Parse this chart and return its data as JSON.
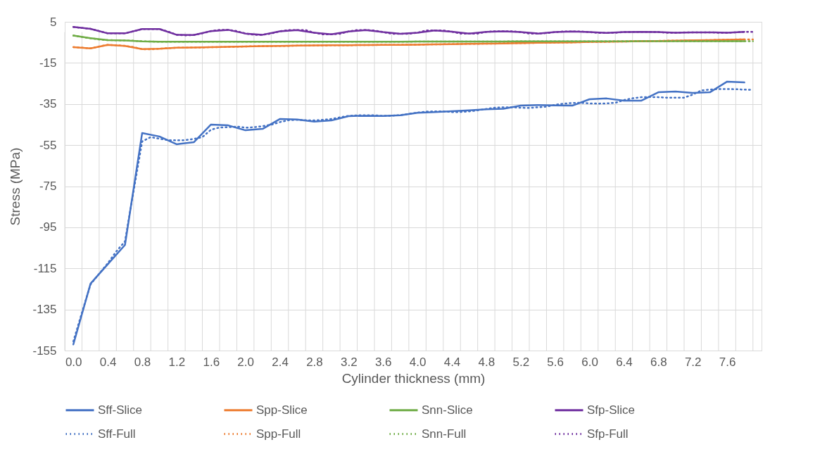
{
  "chart_data": {
    "type": "line",
    "xlabel": "Cylinder thickness (mm)",
    "ylabel": "Stress (MPa)",
    "xlim": [
      -0.1,
      8.0
    ],
    "ylim": [
      -155,
      5
    ],
    "xticks": [
      {
        "value": -0.1,
        "label": null
      },
      {
        "value": 0,
        "label": "0.0"
      },
      {
        "value": 0.1,
        "label": null
      },
      {
        "value": 0.3,
        "label": null
      },
      {
        "value": 0.4,
        "label": "0.4"
      },
      {
        "value": 0.5,
        "label": null
      },
      {
        "value": 0.7,
        "label": null
      },
      {
        "value": 0.8,
        "label": "0.8"
      },
      {
        "value": 0.9,
        "label": null
      },
      {
        "value": 1.1,
        "label": null
      },
      {
        "value": 1.2,
        "label": "1.2"
      },
      {
        "value": 1.3,
        "label": null
      },
      {
        "value": 1.5,
        "label": null
      },
      {
        "value": 1.6,
        "label": "1.6"
      },
      {
        "value": 1.7,
        "label": null
      },
      {
        "value": 1.9,
        "label": null
      },
      {
        "value": 2.0,
        "label": "2.0"
      },
      {
        "value": 2.1,
        "label": null
      },
      {
        "value": 2.3,
        "label": null
      },
      {
        "value": 2.4,
        "label": "2.4"
      },
      {
        "value": 2.5,
        "label": null
      },
      {
        "value": 2.7,
        "label": null
      },
      {
        "value": 2.8,
        "label": "2.8"
      },
      {
        "value": 2.9,
        "label": null
      },
      {
        "value": 3.1,
        "label": null
      },
      {
        "value": 3.2,
        "label": "3.2"
      },
      {
        "value": 3.3,
        "label": null
      },
      {
        "value": 3.5,
        "label": null
      },
      {
        "value": 3.6,
        "label": "3.6"
      },
      {
        "value": 3.7,
        "label": null
      },
      {
        "value": 3.9,
        "label": null
      },
      {
        "value": 4.0,
        "label": "4.0"
      },
      {
        "value": 4.1,
        "label": null
      },
      {
        "value": 4.3,
        "label": null
      },
      {
        "value": 4.4,
        "label": "4.4"
      },
      {
        "value": 4.5,
        "label": null
      },
      {
        "value": 4.7,
        "label": null
      },
      {
        "value": 4.8,
        "label": "4.8"
      },
      {
        "value": 4.9,
        "label": null
      },
      {
        "value": 5.1,
        "label": null
      },
      {
        "value": 5.2,
        "label": "5.2"
      },
      {
        "value": 5.3,
        "label": null
      },
      {
        "value": 5.5,
        "label": null
      },
      {
        "value": 5.6,
        "label": "5.6"
      },
      {
        "value": 5.7,
        "label": null
      },
      {
        "value": 5.9,
        "label": null
      },
      {
        "value": 6.0,
        "label": "6.0"
      },
      {
        "value": 6.1,
        "label": null
      },
      {
        "value": 6.3,
        "label": null
      },
      {
        "value": 6.4,
        "label": "6.4"
      },
      {
        "value": 6.5,
        "label": null
      },
      {
        "value": 6.7,
        "label": null
      },
      {
        "value": 6.8,
        "label": "6.8"
      },
      {
        "value": 6.9,
        "label": null
      },
      {
        "value": 7.1,
        "label": null
      },
      {
        "value": 7.2,
        "label": "7.2"
      },
      {
        "value": 7.3,
        "label": null
      },
      {
        "value": 7.5,
        "label": null
      },
      {
        "value": 7.6,
        "label": "7.6"
      },
      {
        "value": 7.7,
        "label": null
      },
      {
        "value": 7.9,
        "label": null
      }
    ],
    "yticks": [
      -155,
      -135,
      -115,
      -95,
      -75,
      -55,
      -35,
      -15,
      5
    ],
    "grid": true,
    "legend": "bottom",
    "marker": "none",
    "series": [
      {
        "name": "Sff-Slice",
        "color": "#4472c4",
        "line_style": "solid",
        "x": [
          0,
          0.2,
          0.4,
          0.6,
          0.8,
          1.0,
          1.2,
          1.4,
          1.6,
          1.8,
          2.0,
          2.2,
          2.4,
          2.6,
          2.8,
          3.0,
          3.2,
          3.4,
          3.6,
          3.8,
          4.0,
          4.2,
          4.4,
          4.6,
          4.8,
          5.0,
          5.2,
          5.4,
          5.6,
          5.8,
          6.0,
          6.2,
          6.4,
          6.6,
          6.8,
          7.0,
          7.2,
          7.4,
          7.6,
          7.8
        ],
        "values": [
          -152,
          -122.4,
          -113,
          -103.6,
          -49.1,
          -50.8,
          -54.6,
          -53.6,
          -45.0,
          -45.4,
          -47.8,
          -47.1,
          -42.3,
          -42.5,
          -43.6,
          -43.0,
          -40.9,
          -40.7,
          -40.8,
          -40.5,
          -39.3,
          -38.9,
          -38.5,
          -38.1,
          -37.6,
          -37.3,
          -35.8,
          -35.5,
          -35.7,
          -35.8,
          -32.7,
          -32.3,
          -33.4,
          -33.4,
          -29.3,
          -28.9,
          -29.6,
          -29.3,
          -24.1,
          -24.5
        ]
      },
      {
        "name": "Spp-Slice",
        "color": "#ed7d31",
        "line_style": "solid",
        "x": [
          0,
          0.2,
          0.4,
          0.6,
          0.8,
          1.0,
          1.2,
          1.4,
          1.6,
          1.8,
          2.0,
          2.2,
          2.4,
          2.6,
          2.8,
          3.0,
          3.2,
          3.4,
          3.6,
          3.8,
          4.0,
          4.2,
          4.4,
          4.6,
          4.8,
          5.0,
          5.2,
          5.4,
          5.6,
          5.8,
          6.0,
          6.2,
          6.4,
          6.6,
          6.8,
          7.0,
          7.2,
          7.4,
          7.6,
          7.8
        ],
        "values": [
          -7.3,
          -7.9,
          -6.2,
          -6.7,
          -8.3,
          -8.1,
          -7.6,
          -7.5,
          -7.3,
          -7.2,
          -7.0,
          -6.8,
          -6.7,
          -6.6,
          -6.5,
          -6.4,
          -6.4,
          -6.3,
          -6.2,
          -6.2,
          -6.1,
          -6.0,
          -5.9,
          -5.7,
          -5.6,
          -5.5,
          -5.4,
          -5.2,
          -5.1,
          -5.0,
          -4.8,
          -4.7,
          -4.6,
          -4.4,
          -4.3,
          -4.2,
          -4.0,
          -3.9,
          -3.7,
          -3.6
        ]
      },
      {
        "name": "Snn-Slice",
        "color": "#70ad47",
        "line_style": "solid",
        "x": [
          0,
          0.2,
          0.4,
          0.6,
          0.8,
          1.0,
          1.2,
          1.4,
          1.6,
          1.8,
          2.0,
          2.2,
          2.4,
          2.6,
          2.8,
          3.0,
          3.2,
          3.4,
          3.6,
          3.8,
          4.0,
          4.2,
          4.4,
          4.6,
          4.8,
          5.0,
          5.2,
          5.4,
          5.6,
          5.8,
          6.0,
          6.2,
          6.4,
          6.6,
          6.8,
          7.0,
          7.2,
          7.4,
          7.6,
          7.8
        ],
        "values": [
          -1.7,
          -3.0,
          -3.9,
          -4.1,
          -4.5,
          -4.7,
          -4.7,
          -4.7,
          -4.7,
          -4.7,
          -4.7,
          -4.7,
          -4.7,
          -4.7,
          -4.7,
          -4.7,
          -4.7,
          -4.7,
          -4.7,
          -4.7,
          -4.6,
          -4.6,
          -4.6,
          -4.6,
          -4.6,
          -4.6,
          -4.5,
          -4.5,
          -4.5,
          -4.5,
          -4.5,
          -4.5,
          -4.5,
          -4.4,
          -4.4,
          -4.4,
          -4.4,
          -4.4,
          -4.4,
          -4.4
        ]
      },
      {
        "name": "Sfp-Slice",
        "color": "#7030a0",
        "line_style": "solid",
        "x": [
          0,
          0.2,
          0.4,
          0.6,
          0.8,
          1.0,
          1.2,
          1.4,
          1.6,
          1.8,
          2.0,
          2.2,
          2.4,
          2.6,
          2.8,
          3.0,
          3.2,
          3.4,
          3.6,
          3.8,
          4.0,
          4.2,
          4.4,
          4.6,
          4.8,
          5.0,
          5.2,
          5.4,
          5.6,
          5.8,
          6.0,
          6.2,
          6.4,
          6.6,
          6.8,
          7.0,
          7.2,
          7.4,
          7.6,
          7.8
        ],
        "values": [
          2.5,
          1.6,
          -0.6,
          -0.6,
          1.5,
          1.5,
          -1.3,
          -1.4,
          0.5,
          1.1,
          -0.7,
          -1.3,
          0.4,
          1.0,
          -0.3,
          -1.1,
          0.3,
          1.0,
          0.0,
          -0.8,
          -0.3,
          0.8,
          0.2,
          -0.7,
          0.1,
          0.4,
          0.0,
          -0.7,
          0.0,
          0.3,
          0.0,
          -0.4,
          0.0,
          0.1,
          0.0,
          -0.3,
          -0.1,
          -0.1,
          -0.3,
          0.1
        ]
      },
      {
        "name": "Sff-Full",
        "color": "#4472c4",
        "line_style": "dotted",
        "x": [
          0,
          0.1,
          0.2,
          0.3,
          0.4,
          0.5,
          0.6,
          0.7,
          0.8,
          0.9,
          1.0,
          1.1,
          1.2,
          1.3,
          1.4,
          1.5,
          1.6,
          1.7,
          1.8,
          1.9,
          2.0,
          2.1,
          2.2,
          2.3,
          2.4,
          2.5,
          2.6,
          2.7,
          2.8,
          2.9,
          3.0,
          3.1,
          3.2,
          3.3,
          3.4,
          3.5,
          3.6,
          3.7,
          3.8,
          3.9,
          4.0,
          4.1,
          4.2,
          4.3,
          4.4,
          4.5,
          4.6,
          4.7,
          4.8,
          4.9,
          5.0,
          5.1,
          5.2,
          5.3,
          5.4,
          5.5,
          5.6,
          5.7,
          5.8,
          5.9,
          6.0,
          6.1,
          6.2,
          6.3,
          6.4,
          6.5,
          6.6,
          6.7,
          6.8,
          6.9,
          7.0,
          7.1,
          7.2,
          7.3,
          7.4,
          7.5,
          7.6,
          7.7,
          7.8,
          7.9
        ],
        "values": [
          -150.5,
          -136.5,
          -122.8,
          -117.6,
          -112.5,
          -106.7,
          -101.9,
          -77.5,
          -53.2,
          -51.1,
          -51.9,
          -52.6,
          -52.7,
          -52.6,
          -52.0,
          -51.1,
          -47.5,
          -46.4,
          -46.3,
          -46.0,
          -46.5,
          -46.3,
          -45.8,
          -45.1,
          -43.8,
          -42.9,
          -42.7,
          -42.9,
          -43.0,
          -42.7,
          -42.3,
          -41.5,
          -40.8,
          -40.5,
          -40.5,
          -40.5,
          -40.8,
          -40.7,
          -40.4,
          -39.8,
          -39.2,
          -38.7,
          -38.6,
          -38.6,
          -38.9,
          -38.9,
          -38.6,
          -38.1,
          -37.4,
          -36.8,
          -36.6,
          -36.6,
          -36.8,
          -36.9,
          -36.6,
          -36.3,
          -35.4,
          -34.8,
          -34.5,
          -34.4,
          -34.7,
          -34.8,
          -34.7,
          -34.4,
          -33.1,
          -32.2,
          -31.7,
          -31.6,
          -31.7,
          -31.9,
          -31.9,
          -31.9,
          -30.4,
          -28.4,
          -28.0,
          -27.7,
          -27.7,
          -27.8,
          -28.0,
          -28.1
        ]
      },
      {
        "name": "Spp-Full",
        "color": "#ed7d31",
        "line_style": "dotted",
        "x": [
          0,
          0.1,
          0.2,
          0.3,
          0.4,
          0.5,
          0.6,
          0.7,
          0.8,
          0.9,
          1.0,
          1.1,
          1.2,
          1.3,
          1.4,
          1.5,
          1.6,
          1.7,
          1.8,
          1.9,
          2.0,
          2.1,
          2.2,
          2.3,
          2.4,
          2.5,
          2.6,
          2.7,
          2.8,
          2.9,
          3.0,
          3.1,
          3.2,
          3.3,
          3.4,
          3.5,
          3.6,
          3.7,
          3.8,
          3.9,
          4.0,
          4.1,
          4.2,
          4.3,
          4.4,
          4.5,
          4.6,
          4.7,
          4.8,
          4.9,
          5.0,
          5.1,
          5.2,
          5.3,
          5.4,
          5.5,
          5.6,
          5.7,
          5.8,
          5.9,
          6.0,
          6.1,
          6.2,
          6.3,
          6.4,
          6.5,
          6.6,
          6.7,
          6.8,
          6.9,
          7.0,
          7.1,
          7.2,
          7.3,
          7.4,
          7.5,
          7.6,
          7.7,
          7.8,
          7.9
        ],
        "values": [
          -7.3,
          -7.6,
          -7.9,
          -7.0,
          -6.2,
          -6.4,
          -6.7,
          -7.3,
          -8.3,
          -8.4,
          -8.1,
          -7.8,
          -7.6,
          -7.6,
          -7.5,
          -7.5,
          -7.3,
          -7.3,
          -7.2,
          -7.1,
          -7.0,
          -6.9,
          -6.8,
          -6.8,
          -6.7,
          -6.7,
          -6.6,
          -6.6,
          -6.5,
          -6.5,
          -6.4,
          -6.4,
          -6.4,
          -6.3,
          -6.3,
          -6.3,
          -6.2,
          -6.2,
          -6.2,
          -6.1,
          -6.1,
          -6.0,
          -6.0,
          -5.9,
          -5.9,
          -5.8,
          -5.7,
          -5.7,
          -5.6,
          -5.6,
          -5.5,
          -5.4,
          -5.4,
          -5.3,
          -5.2,
          -5.2,
          -5.1,
          -5.0,
          -5.0,
          -4.9,
          -4.8,
          -4.8,
          -4.7,
          -4.6,
          -4.6,
          -4.5,
          -4.4,
          -4.4,
          -4.3,
          -4.2,
          -4.2,
          -4.1,
          -4.0,
          -4.0,
          -3.9,
          -3.8,
          -3.7,
          -3.6,
          -3.6,
          -3.6
        ]
      },
      {
        "name": "Snn-Full",
        "color": "#70ad47",
        "line_style": "dotted",
        "x": [
          0,
          0.1,
          0.2,
          0.3,
          0.4,
          0.5,
          0.6,
          0.7,
          0.8,
          0.9,
          1.0,
          1.1,
          1.2,
          1.3,
          1.4,
          1.5,
          1.6,
          1.7,
          1.8,
          1.9,
          2.0,
          2.1,
          2.2,
          2.3,
          2.4,
          2.5,
          2.6,
          2.7,
          2.8,
          2.9,
          3.0,
          3.1,
          3.2,
          3.3,
          3.4,
          3.5,
          3.6,
          3.7,
          3.8,
          3.9,
          4.0,
          4.1,
          4.2,
          4.3,
          4.4,
          4.5,
          4.6,
          4.7,
          4.8,
          4.9,
          5.0,
          5.1,
          5.2,
          5.3,
          5.4,
          5.5,
          5.6,
          5.7,
          5.8,
          5.9,
          6.0,
          6.1,
          6.2,
          6.3,
          6.4,
          6.5,
          6.6,
          6.7,
          6.8,
          6.9,
          7.0,
          7.1,
          7.2,
          7.3,
          7.4,
          7.5,
          7.6,
          7.7,
          7.8,
          7.9
        ],
        "values": [
          -1.7,
          -2.4,
          -3.0,
          -3.6,
          -3.9,
          -4.0,
          -4.1,
          -4.2,
          -4.5,
          -4.6,
          -4.7,
          -4.7,
          -4.7,
          -4.7,
          -4.7,
          -4.7,
          -4.7,
          -4.7,
          -4.7,
          -4.7,
          -4.7,
          -4.7,
          -4.7,
          -4.7,
          -4.7,
          -4.7,
          -4.7,
          -4.7,
          -4.7,
          -4.7,
          -4.7,
          -4.7,
          -4.7,
          -4.7,
          -4.7,
          -4.7,
          -4.7,
          -4.7,
          -4.7,
          -4.7,
          -4.6,
          -4.6,
          -4.6,
          -4.6,
          -4.6,
          -4.6,
          -4.6,
          -4.6,
          -4.6,
          -4.6,
          -4.6,
          -4.5,
          -4.5,
          -4.5,
          -4.5,
          -4.5,
          -4.5,
          -4.5,
          -4.5,
          -4.5,
          -4.5,
          -4.5,
          -4.5,
          -4.5,
          -4.5,
          -4.5,
          -4.4,
          -4.4,
          -4.4,
          -4.4,
          -4.4,
          -4.4,
          -4.4,
          -4.4,
          -4.4,
          -4.4,
          -4.4,
          -4.4,
          -4.4,
          -4.4
        ]
      },
      {
        "name": "Sfp-Full",
        "color": "#7030a0",
        "line_style": "dotted",
        "x": [
          0,
          0.1,
          0.2,
          0.3,
          0.4,
          0.5,
          0.6,
          0.7,
          0.8,
          0.9,
          1.0,
          1.1,
          1.2,
          1.3,
          1.4,
          1.5,
          1.6,
          1.7,
          1.8,
          1.9,
          2.0,
          2.1,
          2.2,
          2.3,
          2.4,
          2.5,
          2.6,
          2.7,
          2.8,
          2.9,
          3.0,
          3.1,
          3.2,
          3.3,
          3.4,
          3.5,
          3.6,
          3.7,
          3.8,
          3.9,
          4.0,
          4.1,
          4.2,
          4.3,
          4.4,
          4.5,
          4.6,
          4.7,
          4.8,
          4.9,
          5.0,
          5.1,
          5.2,
          5.3,
          5.4,
          5.5,
          5.6,
          5.7,
          5.8,
          5.9,
          6.0,
          6.1,
          6.2,
          6.3,
          6.4,
          6.5,
          6.6,
          6.7,
          6.8,
          6.9,
          7.0,
          7.1,
          7.2,
          7.3,
          7.4,
          7.5,
          7.6,
          7.7,
          7.8,
          7.9
        ],
        "values": [
          2.5,
          2.0,
          1.6,
          0.5,
          -0.6,
          -0.6,
          -0.6,
          0.4,
          1.5,
          1.5,
          1.5,
          0.3,
          -1.3,
          -1.6,
          -1.4,
          -0.6,
          0.5,
          1.1,
          1.1,
          0.5,
          -0.7,
          -1.3,
          -1.3,
          -0.7,
          0.4,
          1.0,
          1.0,
          1.0,
          -0.3,
          -1.1,
          -1.1,
          -0.8,
          0.3,
          1.0,
          1.0,
          0.8,
          0.0,
          -0.8,
          -0.8,
          -0.8,
          -0.3,
          0.8,
          0.8,
          0.8,
          0.2,
          -0.7,
          -0.7,
          -0.7,
          0.1,
          0.4,
          0.4,
          0.4,
          0.0,
          -0.7,
          -0.7,
          -0.5,
          0.0,
          0.3,
          0.3,
          0.3,
          0.0,
          -0.4,
          -0.4,
          -0.3,
          0.0,
          0.1,
          0.1,
          0.1,
          0.0,
          -0.3,
          -0.3,
          -0.1,
          -0.1,
          -0.1,
          -0.1,
          -0.3,
          -0.3,
          -0.1,
          0.1,
          0.1
        ]
      }
    ]
  }
}
